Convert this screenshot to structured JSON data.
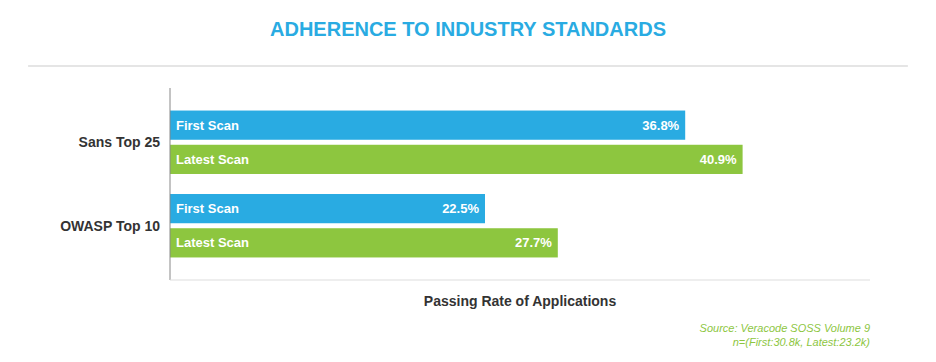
{
  "chart_data": {
    "type": "bar",
    "orientation": "horizontal",
    "title": "ADHERENCE TO INDUSTRY STANDARDS",
    "xlabel": "Passing Rate of Applications",
    "categories": [
      "OWASP Top 10",
      "Sans Top 25"
    ],
    "series": [
      {
        "name": "First Scan",
        "color": "#29abe2",
        "values": [
          22.5,
          36.8
        ],
        "value_labels": [
          "22.5%",
          "36.8%"
        ]
      },
      {
        "name": "Latest Scan",
        "color": "#8dc63f",
        "values": [
          27.7,
          40.9
        ],
        "value_labels": [
          "27.7%",
          "40.9%"
        ]
      }
    ],
    "xlim": [
      0,
      50
    ],
    "xticks": [],
    "data_labels": true,
    "tick_labels": "y",
    "grid": false,
    "annotations": [
      "Source: Veracode SOSS Volume 9\nn=(First:30.8k, Latest:23.2k)"
    ]
  }
}
